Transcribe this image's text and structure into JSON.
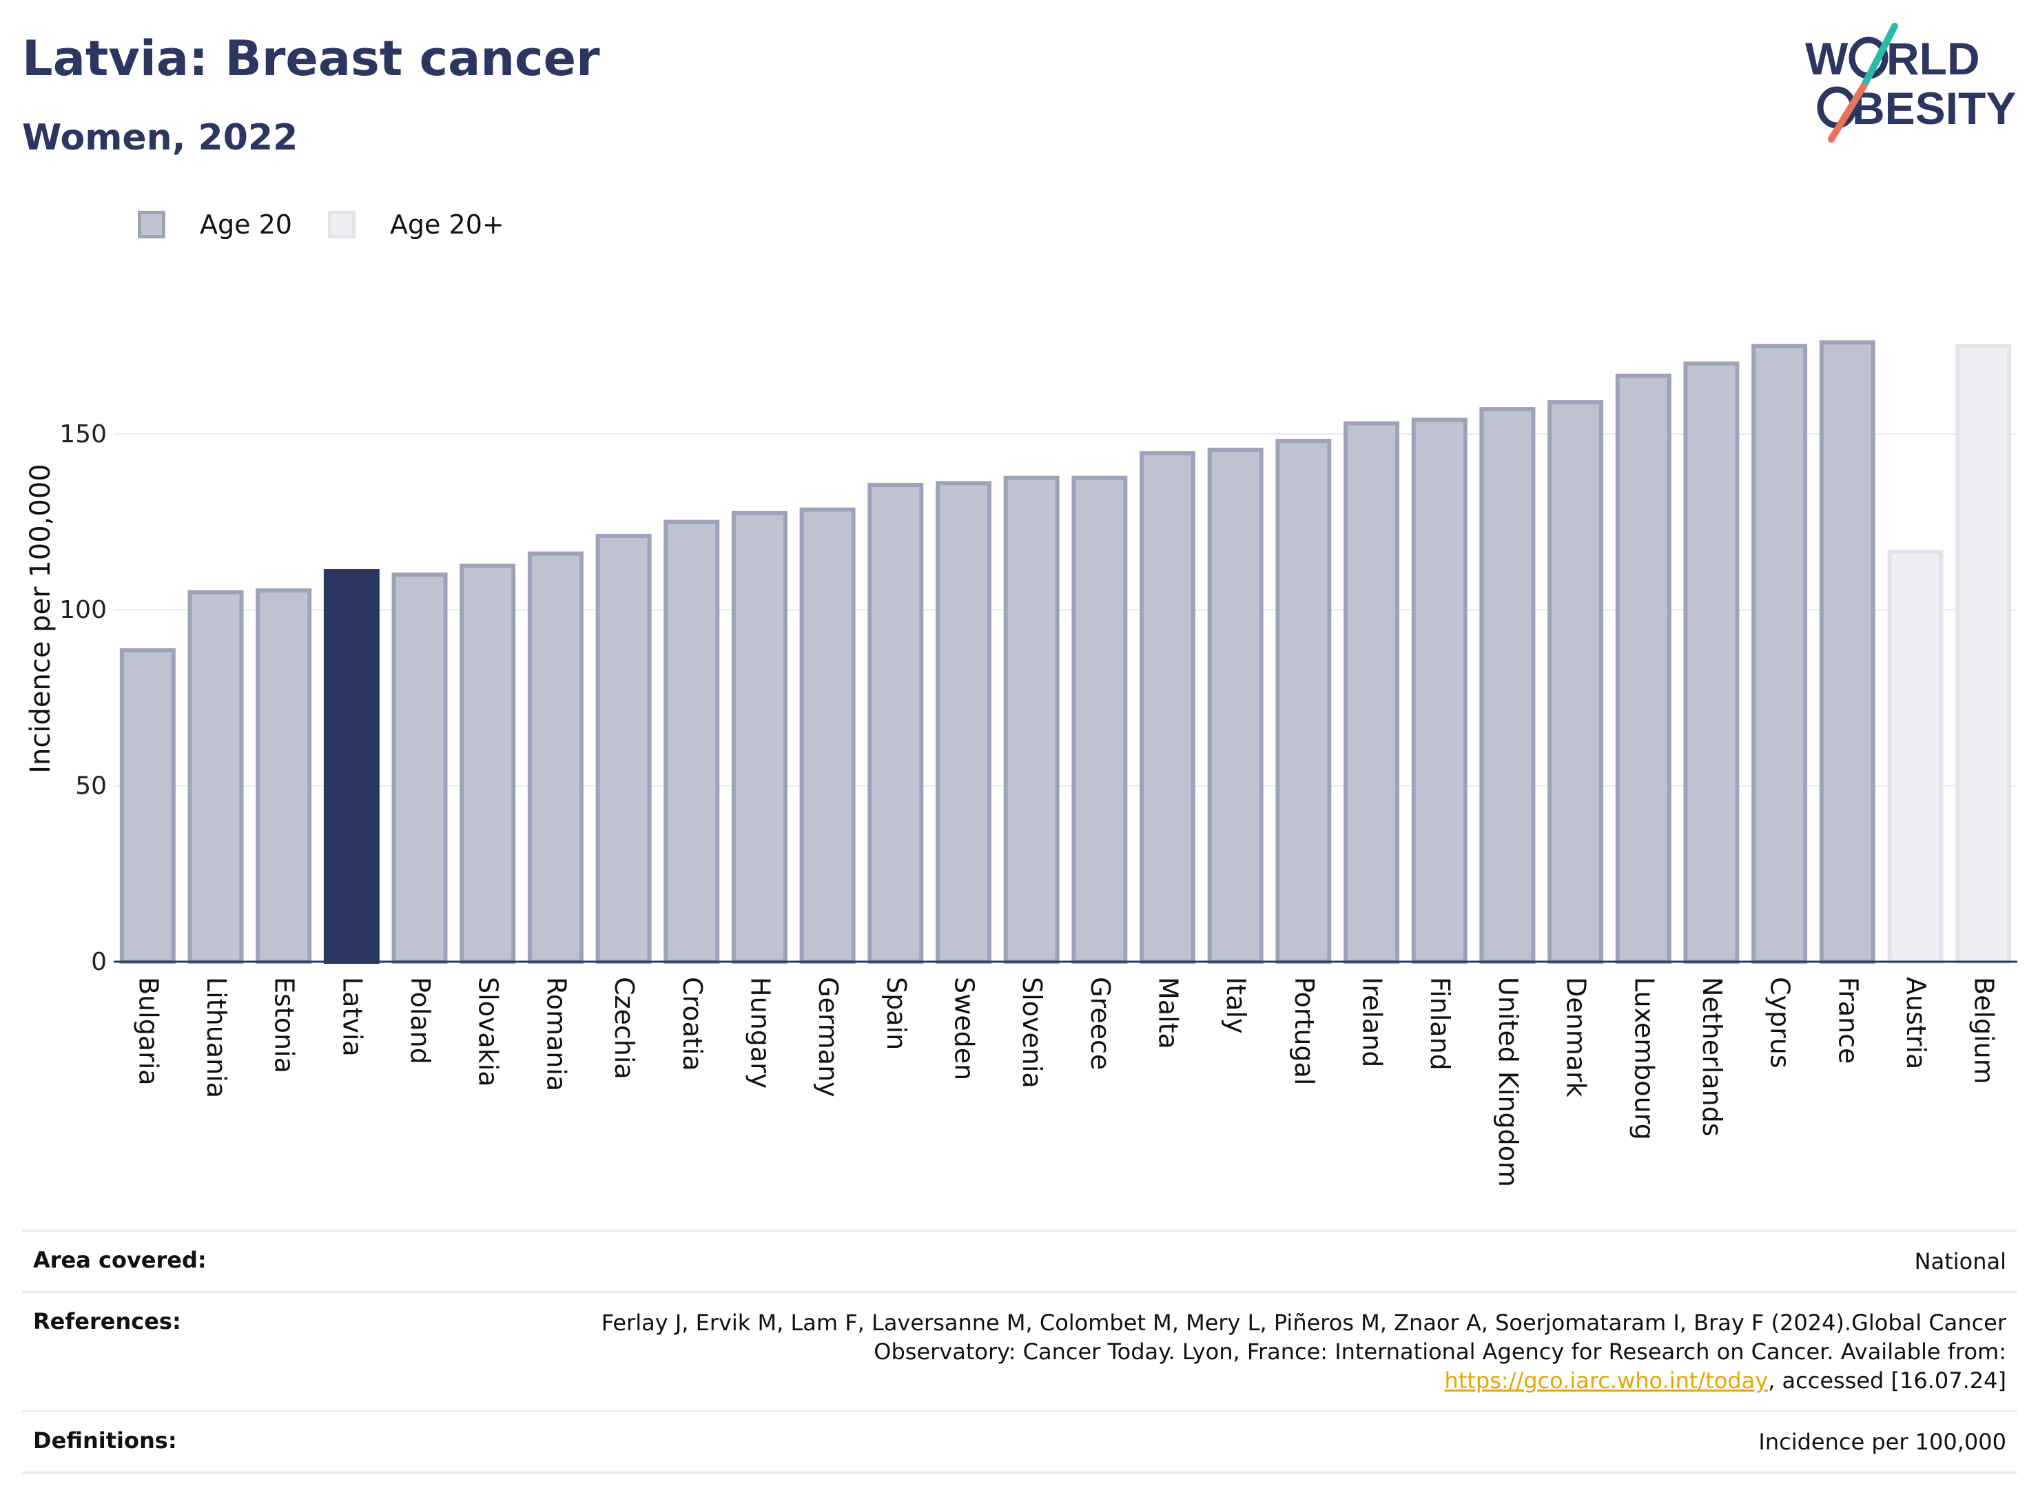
{
  "title": "Latvia: Breast cancer",
  "subtitle": "Women, 2022",
  "logo": {
    "line1_a": "W",
    "line1_b": "RLD",
    "line2": "BESITY",
    "slash_colors": [
      "#2bb9a8",
      "#e8735a"
    ]
  },
  "legend": [
    {
      "label": "Age 20",
      "fill": "#bfc3d0",
      "stroke": "#9da3b8"
    },
    {
      "label": "Age 20+",
      "fill": "#eeeff3",
      "stroke": "#e2e4ea"
    }
  ],
  "colors": {
    "highlight": "#2b3760",
    "age20": "#bfc3d0",
    "age20_stroke": "#9da3b8",
    "age20plus": "#eeeff3",
    "age20plus_stroke": "#e2e4ea",
    "grid": "#e8eaef",
    "axis": "#2b3760"
  },
  "chart_data": {
    "type": "bar",
    "ylabel": "Incidence per 100,000",
    "ylim": [
      0,
      195
    ],
    "yticks": [
      0,
      50,
      100,
      150
    ],
    "highlight": "Latvia",
    "categories": [
      "Bulgaria",
      "Lithuania",
      "Estonia",
      "Latvia",
      "Poland",
      "Slovakia",
      "Romania",
      "Czechia",
      "Croatia",
      "Hungary",
      "Germany",
      "Spain",
      "Sweden",
      "Slovenia",
      "Greece",
      "Malta",
      "Italy",
      "Portugal",
      "Ireland",
      "Finland",
      "United Kingdom",
      "Denmark",
      "Luxembourg",
      "Netherlands",
      "Cyprus",
      "France",
      "Austria",
      "Belgium"
    ],
    "values": [
      88.5,
      105,
      105.5,
      111,
      110,
      112.5,
      116,
      121,
      125,
      127.5,
      128.5,
      135.5,
      136,
      137.5,
      137.5,
      144.5,
      145.5,
      148,
      153,
      154,
      157,
      159,
      166.5,
      170,
      175,
      176,
      116.5,
      175
    ],
    "groups": [
      "Age 20",
      "Age 20",
      "Age 20",
      "Age 20",
      "Age 20",
      "Age 20",
      "Age 20",
      "Age 20",
      "Age 20",
      "Age 20",
      "Age 20",
      "Age 20",
      "Age 20",
      "Age 20",
      "Age 20",
      "Age 20",
      "Age 20",
      "Age 20",
      "Age 20",
      "Age 20",
      "Age 20",
      "Age 20",
      "Age 20",
      "Age 20",
      "Age 20",
      "Age 20",
      "Age 20+",
      "Age 20+"
    ],
    "grid": true,
    "legend_position": "top-left"
  },
  "meta": {
    "area_label": "Area covered:",
    "area_value": "National",
    "references_label": "References:",
    "references_text1": "Ferlay J, Ervik M, Lam F, Laversanne M, Colombet M, Mery L, Piñeros M, Znaor A, Soerjomataram I, Bray F (2024).Global Cancer Observatory: Cancer Today. Lyon, France: International Agency for Research on Cancer. Available from: ",
    "references_link": "https://gco.iarc.who.int/today",
    "references_text2": ", accessed [16.07.24]",
    "definitions_label": "Definitions:",
    "definitions_value": "Incidence per 100,000"
  }
}
